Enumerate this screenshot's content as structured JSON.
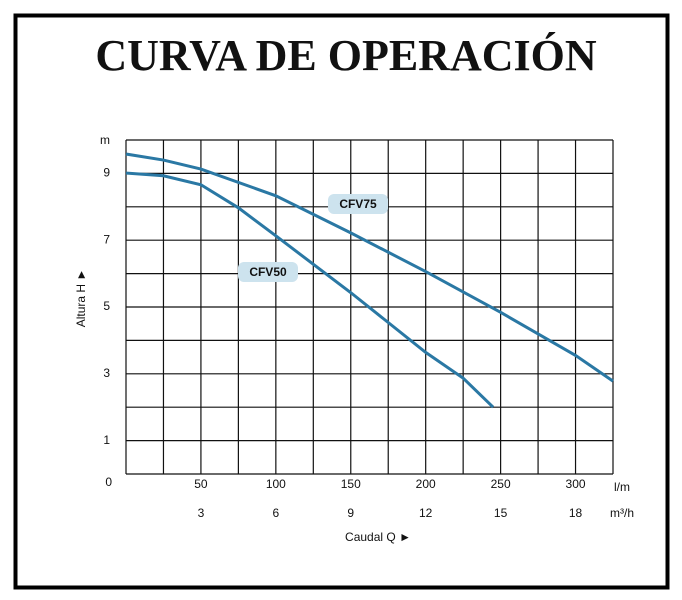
{
  "chart_data": {
    "type": "line",
    "title": "CURVA DE OPERACIÓN",
    "x_label": "Caudal  Q ►",
    "y_label": "Altura  H ►",
    "y_unit": "m",
    "x_unit": "l/m",
    "x2_unit": "m³/h",
    "xlim": [
      0,
      325
    ],
    "xticks": [
      50,
      100,
      150,
      200,
      250,
      300
    ],
    "x_grid_step": 25,
    "x2lim": [
      0,
      19.5
    ],
    "x2ticks": [
      3,
      6,
      9,
      12,
      15,
      18
    ],
    "ylim": [
      0,
      10
    ],
    "yticks": [
      0,
      1,
      3,
      5,
      7,
      9
    ],
    "y_grid_step": 1,
    "grid": true,
    "series": [
      {
        "name": "CFV75",
        "color": "#2a78a4",
        "x": [
          0,
          25,
          50,
          100,
          150,
          200,
          250,
          300,
          325
        ],
        "values": [
          9.58,
          9.4,
          9.13,
          8.33,
          7.22,
          6.06,
          4.84,
          3.55,
          2.78
        ]
      },
      {
        "name": "CFV50",
        "color": "#2a78a4",
        "x": [
          0,
          25,
          50,
          75,
          100,
          150,
          200,
          225,
          245
        ],
        "values": [
          9.01,
          8.93,
          8.66,
          7.97,
          7.13,
          5.43,
          3.64,
          2.87,
          2.0
        ]
      }
    ]
  }
}
